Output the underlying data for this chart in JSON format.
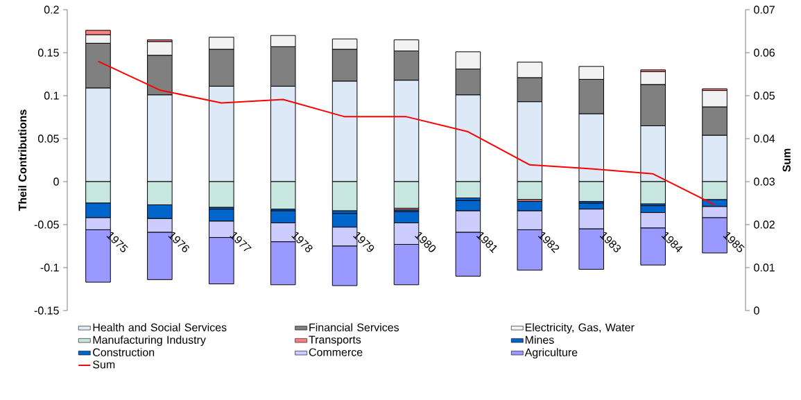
{
  "chart_data": {
    "type": "bar",
    "stacked": true,
    "ylabel": "Theil Contributions",
    "y2label": "Sum",
    "legend": "bottom",
    "categories": [
      "1975",
      "1976",
      "1977",
      "1978",
      "1979",
      "1980",
      "1981",
      "1982",
      "1983",
      "1984",
      "1985"
    ],
    "ylim": [
      -0.15,
      0.2
    ],
    "yticks": [
      -0.15,
      -0.1,
      -0.05,
      0,
      0.05,
      0.1,
      0.15,
      0.2
    ],
    "y2lim": [
      0,
      0.07
    ],
    "y2ticks": [
      0,
      0.01,
      0.02,
      0.03,
      0.04,
      0.05,
      0.06,
      0.07
    ],
    "series": [
      {
        "name": "Health and Social Services",
        "color": "#dde9f7",
        "values": [
          0.109,
          0.101,
          0.111,
          0.111,
          0.117,
          0.118,
          0.101,
          0.093,
          0.079,
          0.065,
          0.054
        ]
      },
      {
        "name": "Financial Services",
        "color": "#808080",
        "values": [
          0.052,
          0.046,
          0.043,
          0.046,
          0.037,
          0.034,
          0.03,
          0.028,
          0.04,
          0.048,
          0.033
        ]
      },
      {
        "name": "Electricity, Gas, Water",
        "color": "#f2f2f2",
        "values": [
          0.01,
          0.016,
          0.014,
          0.013,
          0.012,
          0.013,
          0.02,
          0.018,
          0.015,
          0.015,
          0.019
        ]
      },
      {
        "name": "Manufacturing Industry",
        "color": "#c6e6df",
        "values": [
          -0.025,
          -0.027,
          -0.03,
          -0.032,
          -0.034,
          -0.031,
          -0.019,
          -0.021,
          -0.023,
          -0.026,
          -0.021
        ]
      },
      {
        "name": "Transports",
        "color": "#ff8080",
        "values": [
          0.005,
          0.002,
          null,
          null,
          null,
          -0.002,
          null,
          -0.002,
          null,
          0.002,
          0.002
        ]
      },
      {
        "name": "Mines",
        "color": "#0066cc",
        "values": [
          null,
          null,
          -0.002,
          -0.002,
          -0.003,
          -0.002,
          -0.003,
          null,
          -0.002,
          -0.002,
          null
        ]
      },
      {
        "name": "Construction",
        "color": "#0066cc",
        "values": [
          -0.017,
          -0.016,
          -0.014,
          -0.014,
          -0.016,
          -0.013,
          -0.012,
          -0.011,
          -0.007,
          -0.008,
          -0.008
        ]
      },
      {
        "name": "Commerce",
        "color": "#ccccff",
        "values": [
          -0.014,
          -0.016,
          -0.019,
          -0.022,
          -0.022,
          -0.025,
          -0.025,
          -0.022,
          -0.023,
          -0.018,
          -0.013
        ]
      },
      {
        "name": "Agriculture",
        "color": "#9999ff",
        "values": [
          -0.061,
          -0.055,
          -0.054,
          -0.05,
          -0.046,
          -0.047,
          -0.051,
          -0.047,
          -0.047,
          -0.043,
          -0.041
        ]
      },
      {
        "name": "Sum",
        "color": "#ff0000",
        "type": "line",
        "axis": "y2",
        "values": [
          0.058,
          0.0513,
          0.0483,
          0.0491,
          0.0451,
          0.0451,
          0.0416,
          0.0339,
          0.033,
          0.0318,
          0.0246
        ]
      }
    ]
  }
}
